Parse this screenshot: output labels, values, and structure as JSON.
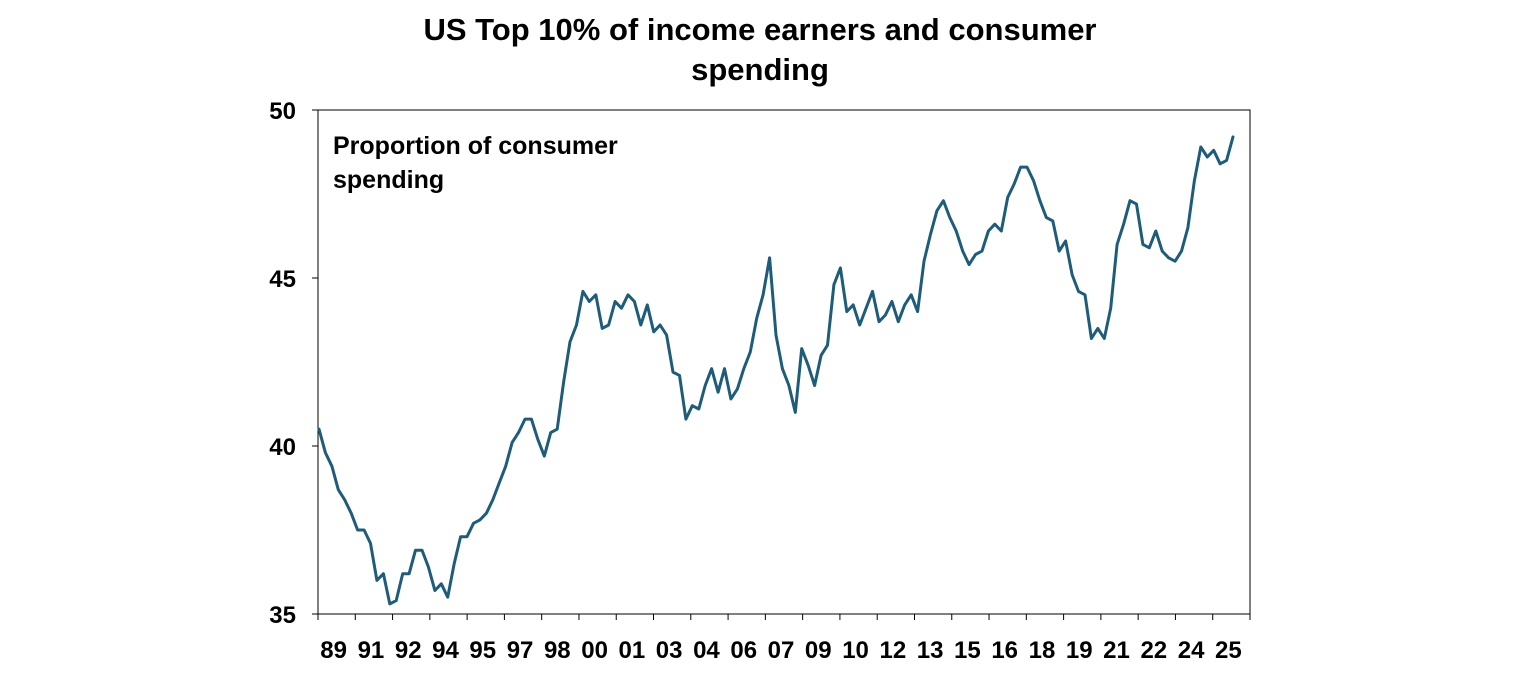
{
  "chart_data": {
    "type": "line",
    "title": "US Top 10% of income earners and consumer spending",
    "title_lines": [
      "US Top 10% of income earners and consumer",
      "spending"
    ],
    "annotation_lines": [
      "Proportion of consumer",
      "spending"
    ],
    "xlabel": "",
    "ylabel": "",
    "ylim": [
      35,
      50
    ],
    "yticks": [
      35,
      40,
      45,
      50
    ],
    "ytick_labels": [
      "35",
      "40",
      "45",
      "50"
    ],
    "x_tick_labels": [
      "89",
      "91",
      "92",
      "94",
      "95",
      "97",
      "98",
      "00",
      "01",
      "03",
      "04",
      "06",
      "07",
      "09",
      "10",
      "12",
      "13",
      "15",
      "16",
      "18",
      "19",
      "21",
      "22",
      "24",
      "25"
    ],
    "grid": false,
    "legend": "none",
    "line_color": "#1F5C7A",
    "series": [
      {
        "name": "Proportion of consumer spending",
        "values": [
          40.5,
          39.8,
          39.4,
          38.7,
          38.4,
          38.0,
          37.5,
          37.5,
          37.1,
          36.0,
          36.2,
          35.3,
          35.4,
          36.2,
          36.2,
          36.9,
          36.9,
          36.4,
          35.7,
          35.9,
          35.5,
          36.5,
          37.3,
          37.3,
          37.7,
          37.8,
          38.0,
          38.4,
          38.9,
          39.4,
          40.1,
          40.4,
          40.8,
          40.8,
          40.2,
          39.7,
          40.4,
          40.5,
          41.9,
          43.1,
          43.6,
          44.6,
          44.3,
          44.5,
          43.5,
          43.6,
          44.3,
          44.1,
          44.5,
          44.3,
          43.6,
          44.2,
          43.4,
          43.6,
          43.3,
          42.2,
          42.1,
          40.8,
          41.2,
          41.1,
          41.8,
          42.3,
          41.6,
          42.3,
          41.4,
          41.7,
          42.3,
          42.8,
          43.8,
          44.5,
          45.6,
          43.3,
          42.3,
          41.8,
          41.0,
          42.9,
          42.4,
          41.8,
          42.7,
          43.0,
          44.8,
          45.3,
          44.0,
          44.2,
          43.6,
          44.1,
          44.6,
          43.7,
          43.9,
          44.3,
          43.7,
          44.2,
          44.5,
          44.0,
          45.5,
          46.3,
          47.0,
          47.3,
          46.8,
          46.4,
          45.8,
          45.4,
          45.7,
          45.8,
          46.4,
          46.6,
          46.4,
          47.4,
          47.8,
          48.3,
          48.3,
          47.9,
          47.3,
          46.8,
          46.7,
          45.8,
          46.1,
          45.1,
          44.6,
          44.5,
          43.2,
          43.5,
          43.2,
          44.1,
          46.0,
          46.6,
          47.3,
          47.2,
          46.0,
          45.9,
          46.4,
          45.8,
          45.6,
          45.5,
          45.8,
          46.5,
          47.9,
          48.9,
          48.6,
          48.8,
          48.4,
          48.5,
          49.2
        ]
      }
    ]
  }
}
